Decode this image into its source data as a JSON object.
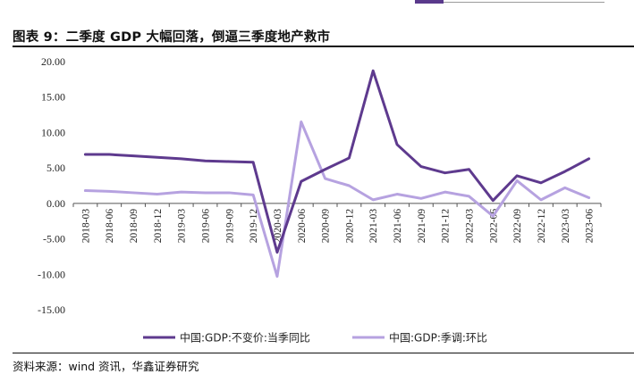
{
  "page": {
    "title": "图表 9：二季度 GDP 大幅回落，倒逼三季度地产救市",
    "source": "资料来源：wind 资讯，华鑫证券研究"
  },
  "colors": {
    "accent": "#5a3a8c",
    "series1": "#5e3a8e",
    "series2": "#b6a2e0",
    "axis": "#555555"
  },
  "chart_data": {
    "type": "line",
    "title": "",
    "xlabel": "",
    "ylabel": "",
    "ylim": [
      -15,
      20
    ],
    "yticks": [
      "20.00",
      "15.00",
      "10.00",
      "5.00",
      "0.00",
      "-5.00",
      "-10.00",
      "-15.00"
    ],
    "ytick_values": [
      20,
      15,
      10,
      5,
      0,
      -5,
      -10,
      -15
    ],
    "x": [
      "2018-03",
      "2018-06",
      "2018-09",
      "2018-12",
      "2019-03",
      "2019-06",
      "2019-09",
      "2019-12",
      "2020-03",
      "2020-06",
      "2020-09",
      "2020-12",
      "2021-03",
      "2021-06",
      "2021-09",
      "2021-12",
      "2022-03",
      "2022-06",
      "2022-09",
      "2022-12",
      "2023-03",
      "2023-06"
    ],
    "series": [
      {
        "name": "中国:GDP:不变价:当季同比",
        "color": "#5e3a8e",
        "values": [
          6.9,
          6.9,
          6.7,
          6.5,
          6.3,
          6.0,
          5.9,
          5.8,
          -6.9,
          3.1,
          4.8,
          6.4,
          18.7,
          8.3,
          5.2,
          4.3,
          4.8,
          0.4,
          3.9,
          2.9,
          4.5,
          6.3
        ]
      },
      {
        "name": "中国:GDP:季调:环比",
        "color": "#b6a2e0",
        "values": [
          1.8,
          1.7,
          1.5,
          1.3,
          1.6,
          1.5,
          1.5,
          1.2,
          -10.3,
          11.5,
          3.5,
          2.5,
          0.5,
          1.3,
          0.7,
          1.6,
          1.0,
          -1.8,
          3.2,
          0.5,
          2.2,
          0.8
        ]
      }
    ],
    "grid": false,
    "legend_position": "bottom-center"
  }
}
